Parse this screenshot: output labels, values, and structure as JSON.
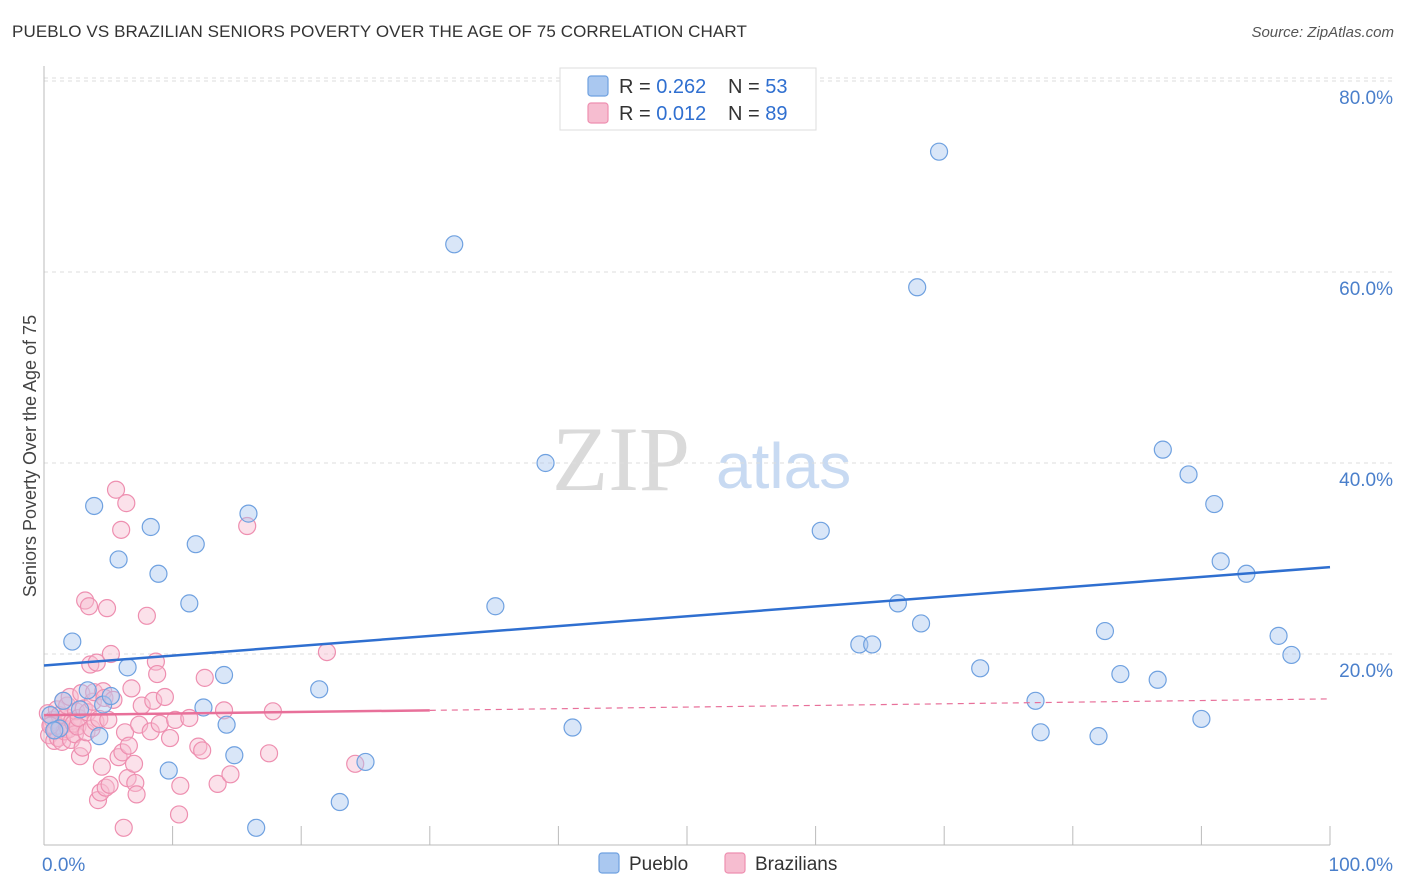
{
  "title": "PUEBLO VS BRAZILIAN SENIORS POVERTY OVER THE AGE OF 75 CORRELATION CHART",
  "source": "Source: ZipAtlas.com",
  "watermark": {
    "zip": "ZIP",
    "atlas": "atlas"
  },
  "colors": {
    "pueblo": "#6fa1e0",
    "pueblo_fill": "#aac8f0",
    "pueblo_line": "#2f6fd0",
    "brazilians": "#ee8fb0",
    "brazilians_fill": "#f6bdd0",
    "brazilians_line": "#e8709a",
    "tick": "#4a7fcb",
    "grid": "#dddddd"
  },
  "legend": {
    "pueblo": {
      "r_label": "R = ",
      "r_value": "0.262",
      "n_label": "N = ",
      "n_value": "53"
    },
    "brazilians": {
      "r_label": "R = ",
      "r_value": "0.012",
      "n_label": "N = ",
      "n_value": "89"
    }
  },
  "chart_data": {
    "type": "scatter",
    "title": "PUEBLO VS BRAZILIAN SENIORS POVERTY OVER THE AGE OF 75 CORRELATION CHART",
    "xlabel": "",
    "ylabel": "Seniors Poverty Over the Age of 75",
    "xlim": [
      0,
      100
    ],
    "ylim": [
      0,
      82
    ],
    "x_tick_labels": [
      "0.0%",
      "100.0%"
    ],
    "y_ticks": [
      20,
      40,
      60,
      80
    ],
    "y_tick_labels": [
      "20.0%",
      "40.0%",
      "60.0%",
      "80.0%"
    ],
    "grid": true,
    "legend_position": "top-center",
    "series": [
      {
        "name": "Pueblo",
        "trend": {
          "x0": 0,
          "y0": 18.8,
          "x1": 100,
          "y1": 29.1
        },
        "points": [
          [
            0.5,
            13.6
          ],
          [
            1.2,
            12.2
          ],
          [
            1.5,
            15.1
          ],
          [
            2.2,
            21.3
          ],
          [
            2.8,
            14.2
          ],
          [
            3.4,
            16.2
          ],
          [
            3.9,
            35.5
          ],
          [
            4.3,
            11.4
          ],
          [
            4.6,
            14.7
          ],
          [
            5.2,
            15.6
          ],
          [
            5.8,
            29.9
          ],
          [
            6.5,
            18.6
          ],
          [
            8.3,
            33.3
          ],
          [
            8.9,
            28.4
          ],
          [
            9.7,
            7.8
          ],
          [
            11.3,
            25.3
          ],
          [
            11.8,
            31.5
          ],
          [
            12.4,
            14.4
          ],
          [
            14.0,
            17.8
          ],
          [
            14.2,
            12.6
          ],
          [
            14.8,
            9.4
          ],
          [
            15.9,
            34.7
          ],
          [
            16.5,
            1.8
          ],
          [
            21.4,
            16.3
          ],
          [
            23.0,
            4.5
          ],
          [
            25.0,
            8.7
          ],
          [
            31.9,
            62.9
          ],
          [
            35.1,
            25.0
          ],
          [
            39.0,
            40.0
          ],
          [
            41.1,
            12.3
          ],
          [
            60.4,
            32.9
          ],
          [
            63.4,
            21.0
          ],
          [
            64.4,
            21.0
          ],
          [
            66.4,
            25.3
          ],
          [
            68.2,
            23.2
          ],
          [
            67.9,
            58.4
          ],
          [
            69.6,
            72.6
          ],
          [
            72.8,
            18.5
          ],
          [
            77.1,
            15.1
          ],
          [
            77.5,
            11.8
          ],
          [
            82.0,
            11.4
          ],
          [
            82.5,
            22.4
          ],
          [
            83.7,
            17.9
          ],
          [
            86.6,
            17.3
          ],
          [
            87.0,
            41.4
          ],
          [
            89.0,
            38.8
          ],
          [
            90.0,
            13.2
          ],
          [
            91.0,
            35.7
          ],
          [
            91.5,
            29.7
          ],
          [
            93.5,
            28.4
          ],
          [
            96.0,
            21.9
          ],
          [
            97.0,
            19.9
          ],
          [
            0.8,
            12.0
          ]
        ]
      },
      {
        "name": "Brazilians",
        "trend": {
          "x0": 0,
          "y0": 13.6,
          "x1": 30,
          "y1": 14.1,
          "dash_to_x": 100,
          "dash_to_y": 15.3
        },
        "points": [
          [
            0.3,
            13.8
          ],
          [
            0.4,
            11.5
          ],
          [
            0.6,
            12.6
          ],
          [
            0.7,
            13.1
          ],
          [
            0.8,
            10.9
          ],
          [
            0.9,
            12.0
          ],
          [
            1.0,
            14.2
          ],
          [
            1.1,
            11.2
          ],
          [
            1.2,
            13.6
          ],
          [
            1.3,
            12.3
          ],
          [
            1.4,
            10.8
          ],
          [
            1.5,
            15.1
          ],
          [
            1.6,
            11.9
          ],
          [
            1.7,
            13.4
          ],
          [
            1.8,
            14.6
          ],
          [
            1.9,
            12.1
          ],
          [
            2.0,
            15.5
          ],
          [
            2.1,
            11.0
          ],
          [
            2.2,
            13.0
          ],
          [
            2.3,
            12.7
          ],
          [
            2.4,
            11.6
          ],
          [
            2.5,
            14.0
          ],
          [
            2.6,
            12.4
          ],
          [
            2.7,
            13.3
          ],
          [
            2.8,
            9.3
          ],
          [
            2.9,
            15.9
          ],
          [
            3.0,
            10.2
          ],
          [
            3.1,
            14.3
          ],
          [
            3.2,
            25.6
          ],
          [
            3.3,
            11.8
          ],
          [
            3.4,
            13.9
          ],
          [
            3.5,
            25.0
          ],
          [
            3.6,
            18.9
          ],
          [
            3.7,
            12.2
          ],
          [
            3.8,
            15.0
          ],
          [
            3.9,
            16.0
          ],
          [
            4.0,
            12.9
          ],
          [
            4.1,
            19.1
          ],
          [
            4.2,
            4.7
          ],
          [
            4.3,
            13.2
          ],
          [
            4.4,
            5.5
          ],
          [
            4.5,
            8.2
          ],
          [
            4.6,
            16.1
          ],
          [
            4.7,
            15.4
          ],
          [
            4.8,
            6.0
          ],
          [
            4.9,
            24.8
          ],
          [
            5.0,
            13.1
          ],
          [
            5.1,
            6.3
          ],
          [
            5.2,
            20.0
          ],
          [
            5.4,
            15.2
          ],
          [
            5.6,
            37.2
          ],
          [
            5.8,
            9.2
          ],
          [
            6.0,
            33.0
          ],
          [
            6.1,
            9.7
          ],
          [
            6.2,
            1.8
          ],
          [
            6.3,
            11.8
          ],
          [
            6.4,
            35.8
          ],
          [
            6.5,
            7.0
          ],
          [
            6.6,
            10.4
          ],
          [
            6.8,
            16.4
          ],
          [
            7.0,
            8.5
          ],
          [
            7.1,
            6.5
          ],
          [
            7.2,
            5.3
          ],
          [
            7.4,
            12.6
          ],
          [
            7.6,
            14.6
          ],
          [
            8.0,
            24.0
          ],
          [
            8.3,
            11.9
          ],
          [
            8.5,
            15.1
          ],
          [
            8.7,
            19.2
          ],
          [
            8.8,
            17.9
          ],
          [
            9.0,
            12.7
          ],
          [
            9.4,
            15.5
          ],
          [
            9.8,
            11.2
          ],
          [
            10.2,
            13.1
          ],
          [
            10.5,
            3.2
          ],
          [
            10.6,
            6.2
          ],
          [
            11.3,
            13.3
          ],
          [
            12.0,
            10.3
          ],
          [
            12.3,
            9.9
          ],
          [
            12.5,
            17.5
          ],
          [
            13.5,
            6.4
          ],
          [
            14.0,
            14.1
          ],
          [
            14.5,
            7.4
          ],
          [
            15.8,
            33.4
          ],
          [
            17.5,
            9.6
          ],
          [
            17.8,
            14.0
          ],
          [
            22.0,
            20.2
          ],
          [
            24.2,
            8.5
          ],
          [
            0.5,
            12.5
          ]
        ]
      }
    ]
  },
  "bottom_legend": {
    "pueblo": "Pueblo",
    "brazilians": "Brazilians"
  }
}
